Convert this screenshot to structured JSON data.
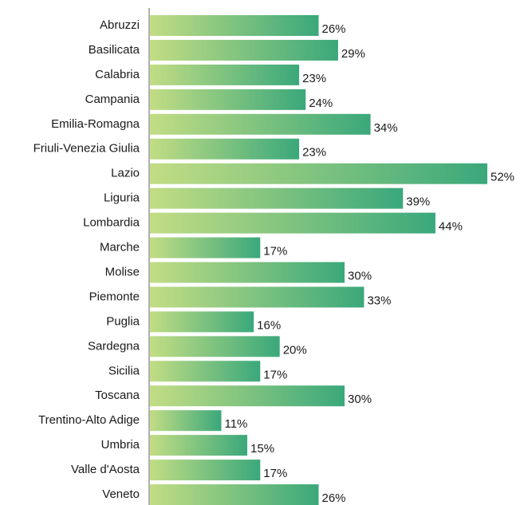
{
  "chart_data": {
    "type": "hbar",
    "categories": [
      "Abruzzi",
      "Basilicata",
      "Calabria",
      "Campania",
      "Emilia-Romagna",
      "Friuli-Venezia Giulia",
      "Lazio",
      "Liguria",
      "Lombardia",
      "Marche",
      "Molise",
      "Piemonte",
      "Puglia",
      "Sardegna",
      "Sicilia",
      "Toscana",
      "Trentino-Alto Adige",
      "Umbria",
      "Valle d'Aosta",
      "Veneto"
    ],
    "values": [
      26,
      29,
      23,
      24,
      34,
      23,
      52,
      39,
      44,
      17,
      30,
      33,
      16,
      20,
      17,
      30,
      11,
      15,
      17,
      26
    ],
    "value_labels": [
      "26%",
      "29%",
      "23%",
      "24%",
      "34%",
      "23%",
      "52%",
      "39%",
      "44%",
      "17%",
      "30%",
      "33%",
      "16%",
      "20%",
      "17%",
      "30%",
      "11%",
      "15%",
      "17%",
      "26%"
    ],
    "gradient": [
      "#c2dd84",
      "#3aa87b"
    ]
  }
}
